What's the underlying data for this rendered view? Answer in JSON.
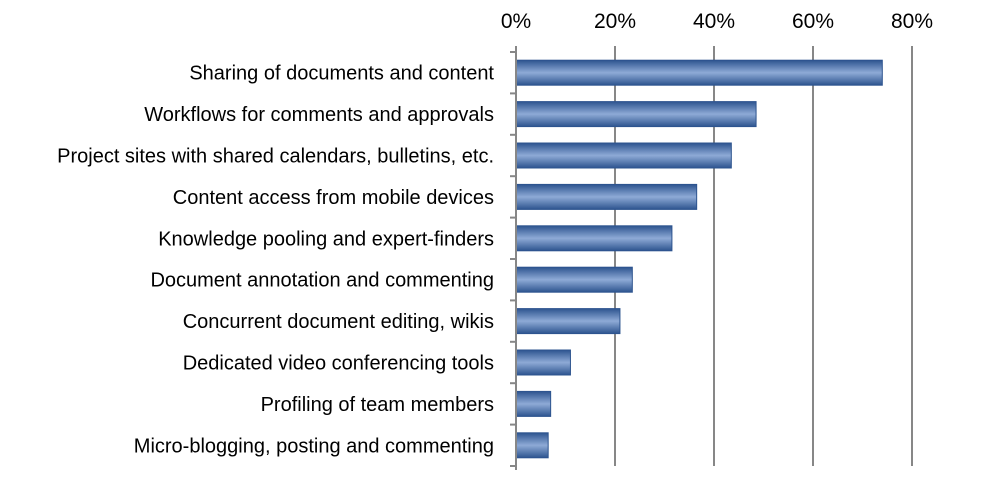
{
  "chart_data": {
    "type": "bar",
    "orientation": "horizontal",
    "title": "",
    "xlabel": "",
    "ylabel": "",
    "xlim": [
      0,
      80
    ],
    "x_tick_values": [
      0,
      20,
      40,
      60,
      80
    ],
    "x_tick_labels": [
      "0%",
      "20%",
      "40%",
      "60%",
      "80%"
    ],
    "x_axis_position": "top",
    "grid": "vertical",
    "legend": "none",
    "categories": [
      "Sharing of documents and content",
      "Workflows for comments and approvals",
      "Project sites with shared calendars, bulletins, etc.",
      "Content access from mobile devices",
      "Knowledge pooling and expert-finders",
      "Document annotation and commenting",
      "Concurrent document editing, wikis",
      "Dedicated video conferencing tools",
      "Profiling of team members",
      "Micro-blogging, posting and commenting"
    ],
    "values": [
      74,
      48.5,
      43.5,
      36.5,
      31.5,
      23.5,
      21,
      11,
      7,
      6.5
    ],
    "colors": {
      "bar": "#4a72ad",
      "bar_highlight": "#8eaad6",
      "bar_dark": "#2d548f",
      "grid": "#878787",
      "axis": "#878787"
    }
  }
}
